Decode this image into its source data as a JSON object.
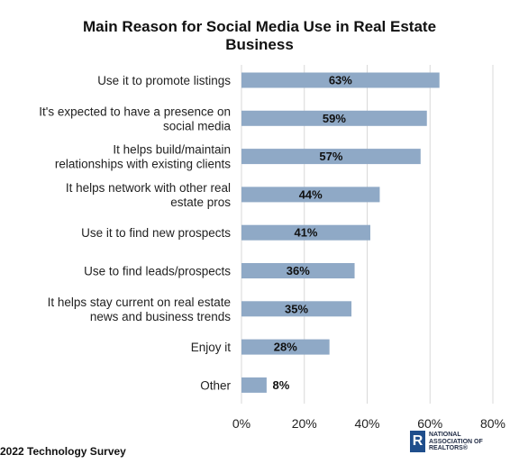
{
  "chart_data": {
    "type": "bar",
    "orientation": "horizontal",
    "title": "Main Reason for Social Media Use in Real Estate\nBusiness",
    "categories": [
      [
        "Use it to promote listings"
      ],
      [
        "It's expected to have a presence on",
        "social media"
      ],
      [
        "It helps build/maintain",
        "relationships with existing clients"
      ],
      [
        "It helps network with other real",
        "estate pros"
      ],
      [
        "Use it to find new prospects"
      ],
      [
        "Use to find leads/prospects"
      ],
      [
        "It helps stay current on real estate",
        "news and business trends"
      ],
      [
        "Enjoy it"
      ],
      [
        "Other"
      ]
    ],
    "values": [
      63,
      59,
      57,
      44,
      41,
      36,
      35,
      28,
      8
    ],
    "value_labels": [
      "63%",
      "59%",
      "57%",
      "44%",
      "41%",
      "36%",
      "35%",
      "28%",
      "8%"
    ],
    "xlim": [
      0,
      80
    ],
    "xticks": [
      "0%",
      "20%",
      "40%",
      "60%",
      "80%"
    ],
    "grid": true,
    "bar_color": "#8fa9c6"
  },
  "footer": {
    "source": "2022 Technology Survey"
  },
  "logo": {
    "mark": "R",
    "lines": [
      "NATIONAL",
      "ASSOCIATION OF",
      "REALTORS®"
    ]
  }
}
